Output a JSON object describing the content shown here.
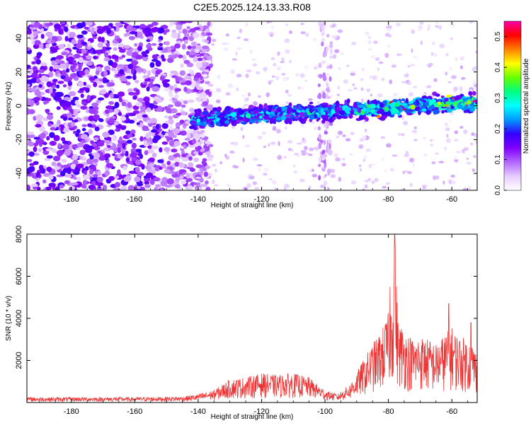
{
  "title": "C2E5.2025.124.13.33.R08",
  "chart_data": [
    {
      "type": "heatmap",
      "xlabel": "Height of straight line (km)",
      "ylabel": "Frequency (Hz)",
      "xlim": [
        -194,
        -52
      ],
      "ylim": [
        -50,
        50
      ],
      "x_ticks": [
        -180,
        -160,
        -140,
        -120,
        -100,
        -80,
        -60
      ],
      "y_ticks": [
        -40,
        -20,
        0,
        20,
        40
      ],
      "x_tick_labels": [
        "-180",
        "-160",
        "-140",
        "-120",
        "-100",
        "-80",
        "-60"
      ],
      "y_tick_labels": [
        "-40",
        "-20",
        "0",
        "20",
        "40"
      ],
      "colorbar": {
        "label": "Normalized spectral amplitude",
        "range": [
          0,
          0.55
        ],
        "ticks": [
          0,
          0.1,
          0.2,
          0.3,
          0.4,
          0.5
        ],
        "tick_labels": [
          "0.0",
          "0.1",
          "0.2",
          "0.3",
          "0.4",
          "0.5"
        ],
        "colormap": [
          "#ffffff",
          "#e6ccff",
          "#b366ff",
          "#8000ff",
          "#3300ff",
          "#0099ff",
          "#00ffff",
          "#00ff80",
          "#66ff00",
          "#ffff00",
          "#ff8000",
          "#ff0000",
          "#ff00aa"
        ]
      },
      "grid": false,
      "features": {
        "noise_region_x": [
          -194,
          -140
        ],
        "echo_band": {
          "x": [
            -142,
            -52
          ],
          "center_freq_start": -8,
          "center_freq_end": 2,
          "half_width": 7
        },
        "vertical_streak_x": -100
      }
    },
    {
      "type": "line",
      "xlabel": "Height of straight line (km)",
      "ylabel": "SNR (10 * v/v)",
      "xlim": [
        -194,
        -52
      ],
      "ylim": [
        0,
        8000
      ],
      "x_ticks": [
        -180,
        -160,
        -140,
        -120,
        -100,
        -80,
        -60
      ],
      "y_ticks": [
        2000,
        4000,
        6000,
        8000
      ],
      "x_tick_labels": [
        "-180",
        "-160",
        "-140",
        "-120",
        "-100",
        "-80",
        "-60"
      ],
      "y_tick_labels": [
        "2000",
        "4000",
        "6000",
        "8000"
      ],
      "line_color": "#ee3333",
      "grid": false,
      "envelope": {
        "x": [
          -194,
          -180,
          -160,
          -145,
          -140,
          -135,
          -130,
          -125,
          -120,
          -115,
          -110,
          -105,
          -100,
          -96,
          -92,
          -88,
          -85,
          -82,
          -80,
          -79,
          -78,
          -77,
          -75,
          -72,
          -70,
          -67,
          -65,
          -62,
          -60,
          -58,
          -55,
          -53,
          -52
        ],
        "y": [
          250,
          250,
          250,
          280,
          400,
          600,
          1100,
          1200,
          1400,
          1300,
          1400,
          1200,
          600,
          400,
          900,
          2000,
          2800,
          3500,
          4300,
          5500,
          8000,
          4000,
          3500,
          3000,
          3200,
          3000,
          2800,
          3300,
          3600,
          3200,
          3000,
          2800,
          2200
        ]
      },
      "peaks": [
        {
          "x": -79.5,
          "y": 5500
        },
        {
          "x": -78.0,
          "y": 8000
        },
        {
          "x": -61.0,
          "y": 4700
        },
        {
          "x": -54.0,
          "y": 3800
        }
      ]
    }
  ]
}
